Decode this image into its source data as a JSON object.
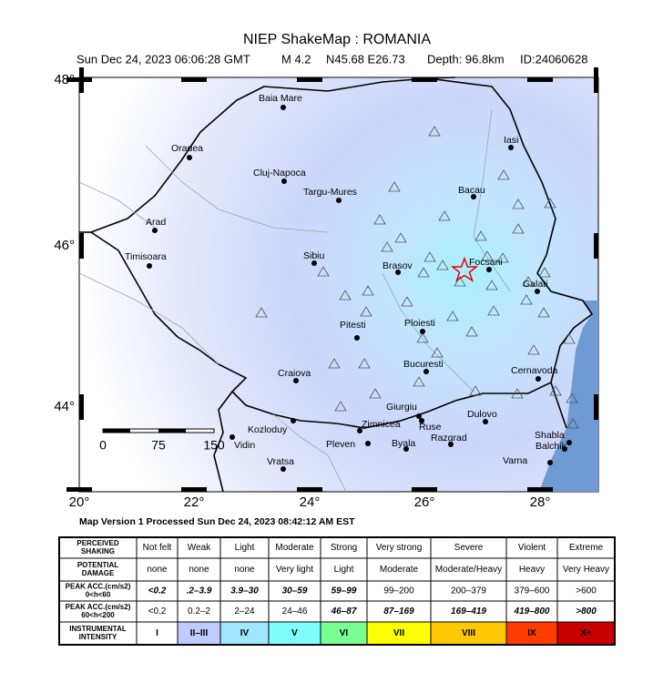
{
  "header": {
    "title": "NIEP ShakeMap : ROMANIA",
    "info": [
      "Sun Dec 24, 2023 06:06:28 GMT",
      "M 4.2",
      "N45.68 E26.73",
      "Depth: 96.8km",
      "ID:24060628"
    ]
  },
  "map": {
    "lat_ticks": [
      "48°",
      "46°",
      "44°"
    ],
    "lon_ticks": [
      "20°",
      "22°",
      "24°",
      "26°",
      "28°"
    ],
    "cities": [
      "Baia Mare",
      "Oradea",
      "Cluj-Napoca",
      "Targu-Mures",
      "Arad",
      "Timisoara",
      "Sibiu",
      "Brasov",
      "Iasi",
      "Bacau",
      "Focsani",
      "Galati",
      "Pitesti",
      "Ploiesti",
      "Bucuresti",
      "Cernavoda",
      "Craiova",
      "Giurgiu",
      "Dulovo",
      "Zimnicea",
      "Ruse",
      "Kozloduy",
      "Vidin",
      "Razgrad",
      "Pleven",
      "Byala",
      "Shabla",
      "Balchik",
      "Varna",
      "Vratsa"
    ],
    "scale_labels": [
      "0",
      "75",
      "150"
    ]
  },
  "footer": "Map Version 1 Processed Sun Dec 24, 2023 08:42:12 AM EST",
  "legend": {
    "rows": [
      {
        "label": [
          "PERCEIVED",
          "SHAKING"
        ],
        "cells": [
          "Not felt",
          "Weak",
          "Light",
          "Moderate",
          "Strong",
          "Very strong",
          "Severe",
          "Violent",
          "Extreme"
        ]
      },
      {
        "label": [
          "POTENTIAL",
          "DAMAGE"
        ],
        "cells": [
          "none",
          "none",
          "none",
          "Very light",
          "Light",
          "Moderate",
          "Moderate/Heavy",
          "Heavy",
          "Very Heavy"
        ]
      },
      {
        "label": [
          "PEAK ACC.(cm/s2)",
          "0<h<60"
        ],
        "cells": [
          "<0.2",
          ".2–3.9",
          "3.9–30",
          "30–59",
          "59–99",
          "99–200",
          "200–379",
          "379–600",
          ">600"
        ]
      },
      {
        "label": [
          "PEAK ACC.(cm/s2)",
          "60<h<200"
        ],
        "cells": [
          "<0.2",
          "0.2–2",
          "2–24",
          "24–46",
          "46–87",
          "87–169",
          "169–419",
          "419–800",
          ">800"
        ]
      },
      {
        "label": [
          "INSTRUMENTAL",
          "INTENSITY"
        ],
        "cells": [
          "I",
          "II–III",
          "IV",
          "V",
          "VI",
          "VII",
          "VIII",
          "IX",
          "X+"
        ]
      }
    ]
  }
}
